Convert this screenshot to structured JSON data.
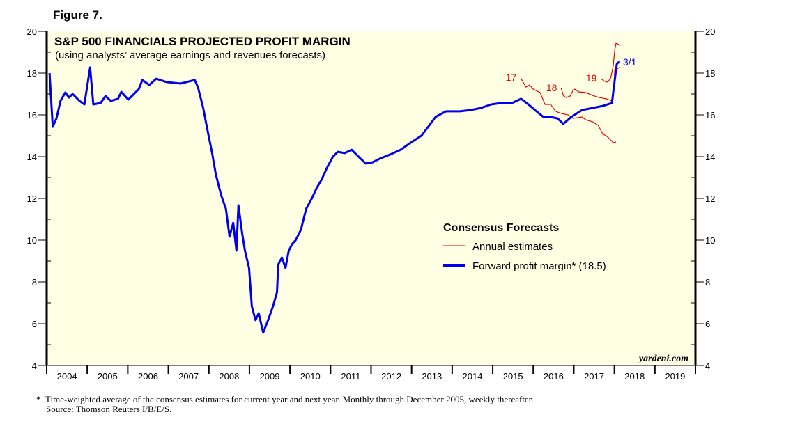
{
  "figure_label": "Figure 7.",
  "footnote": "Time-weighted average of the consensus estimates for current year and next year. Monthly through December 2005, weekly thereafter.",
  "footnote_marker": "*",
  "source": "Source: Thomson Reuters I/B/E/S.",
  "chart_data": {
    "type": "line",
    "title": "S&P 500 FINANCIALS PROJECTED PROFIT MARGIN",
    "subtitle": "(using analysts’ average earnings and revenues forecasts)",
    "watermark": "yardeni.com",
    "ylim": [
      4,
      20
    ],
    "yticks": [
      "4",
      "6",
      "8",
      "10",
      "12",
      "14",
      "16",
      "18",
      "20"
    ],
    "xlim": [
      2004,
      2020
    ],
    "xticks": [
      "2004",
      "2005",
      "2006",
      "2007",
      "2008",
      "2009",
      "2010",
      "2011",
      "2012",
      "2013",
      "2014",
      "2015",
      "2016",
      "2017",
      "2018",
      "2019"
    ],
    "legend": {
      "title": "Consensus Forecasts",
      "entries": [
        "Annual estimates",
        "Forward profit margin* (18.5)"
      ],
      "placement": "center-right"
    },
    "end_label": "3/1",
    "colors": {
      "forward": "#0000ee",
      "annual": "#ee0000",
      "background": "#ffffe4"
    },
    "forward": {
      "name": "Forward profit margin",
      "x": [
        2004.07,
        2004.15,
        2004.24,
        2004.34,
        2004.46,
        2004.55,
        2004.64,
        2004.81,
        2004.93,
        2005.07,
        2005.15,
        2005.33,
        2005.45,
        2005.58,
        2005.76,
        2005.84,
        2006.01,
        2006.1,
        2006.27,
        2006.36,
        2006.53,
        2006.7,
        2006.96,
        2007.3,
        2007.65,
        2007.73,
        2007.86,
        2007.96,
        2008.08,
        2008.17,
        2008.3,
        2008.42,
        2008.51,
        2008.6,
        2008.68,
        2008.73,
        2008.82,
        2008.89,
        2008.99,
        2009.06,
        2009.15,
        2009.23,
        2009.34,
        2009.46,
        2009.58,
        2009.68,
        2009.71,
        2009.8,
        2009.89,
        2009.97,
        2010.06,
        2010.14,
        2010.27,
        2010.4,
        2010.54,
        2010.66,
        2010.78,
        2010.92,
        2011.06,
        2011.18,
        2011.35,
        2011.52,
        2011.69,
        2011.87,
        2012.04,
        2012.21,
        2012.47,
        2012.73,
        2012.98,
        2013.24,
        2013.41,
        2013.59,
        2013.85,
        2014.19,
        2014.45,
        2014.71,
        2014.96,
        2015.22,
        2015.48,
        2015.7,
        2015.88,
        2016.08,
        2016.25,
        2016.43,
        2016.6,
        2016.74,
        2016.94,
        2017.2,
        2017.46,
        2017.72,
        2017.94,
        2018.01,
        2018.06,
        2018.13
      ],
      "y": [
        18.0,
        15.43,
        15.83,
        16.67,
        17.07,
        16.83,
        17.0,
        16.67,
        16.5,
        18.27,
        16.5,
        16.57,
        16.9,
        16.67,
        16.77,
        17.1,
        16.73,
        16.9,
        17.23,
        17.67,
        17.43,
        17.73,
        17.57,
        17.5,
        17.67,
        17.33,
        16.33,
        15.33,
        14.17,
        13.17,
        12.17,
        11.5,
        10.17,
        10.83,
        9.5,
        11.67,
        10.33,
        9.5,
        8.67,
        6.83,
        6.17,
        6.5,
        5.57,
        6.17,
        6.83,
        7.5,
        8.83,
        9.17,
        8.67,
        9.5,
        9.83,
        10.0,
        10.5,
        11.5,
        12.0,
        12.5,
        12.9,
        13.5,
        14.0,
        14.23,
        14.17,
        14.33,
        14.0,
        13.67,
        13.73,
        13.9,
        14.1,
        14.33,
        14.67,
        15.0,
        15.43,
        15.9,
        16.17,
        16.17,
        16.23,
        16.33,
        16.5,
        16.57,
        16.57,
        16.77,
        16.5,
        16.17,
        15.9,
        15.9,
        15.83,
        15.57,
        15.9,
        16.23,
        16.33,
        16.43,
        16.57,
        17.67,
        18.43,
        18.57
      ]
    },
    "annual": [
      {
        "label": "17",
        "x": [
          2015.69,
          2015.82,
          2015.91,
          2016.0,
          2016.17,
          2016.29,
          2016.43,
          2016.55,
          2016.69,
          2016.86,
          2016.98,
          2017.2,
          2017.29,
          2017.46,
          2017.6,
          2017.72,
          2017.8,
          2017.89,
          2017.97,
          2018.04
        ],
        "y": [
          17.77,
          17.33,
          17.43,
          17.23,
          17.07,
          16.5,
          16.5,
          16.17,
          16.07,
          16.0,
          15.83,
          15.9,
          15.77,
          15.67,
          15.5,
          15.07,
          15.0,
          14.83,
          14.67,
          14.7
        ]
      },
      {
        "label": "18",
        "x": [
          2016.69,
          2016.74,
          2016.81,
          2016.91,
          2016.98,
          2017.03,
          2017.12,
          2017.29,
          2017.46,
          2017.63,
          2017.8,
          2017.94,
          2017.97,
          2018.01,
          2018.15
        ],
        "y": [
          17.27,
          16.93,
          16.83,
          16.9,
          17.17,
          17.23,
          17.1,
          17.07,
          16.93,
          16.83,
          16.77,
          16.67,
          16.73,
          18.17,
          18.27
        ]
      },
      {
        "label": "19",
        "x": [
          2017.67,
          2017.77,
          2017.84,
          2017.91,
          2017.97,
          2018.01,
          2018.04,
          2018.15
        ],
        "y": [
          17.73,
          17.6,
          17.57,
          17.77,
          18.33,
          19.1,
          19.43,
          19.33
        ]
      }
    ]
  }
}
